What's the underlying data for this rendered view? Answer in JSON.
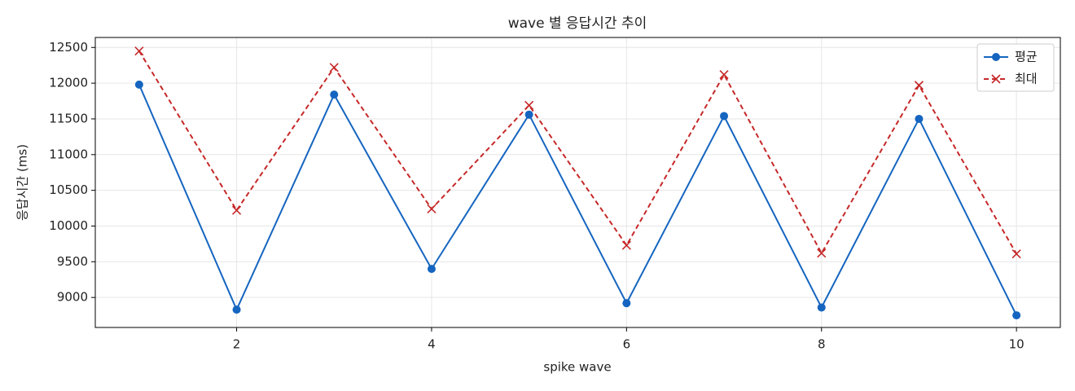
{
  "chart_data": {
    "type": "line",
    "title": "wave 별 응답시간 추이",
    "x_label": "spike wave",
    "y_label": "응답시간 (ms)",
    "x": [
      1,
      2,
      3,
      4,
      5,
      6,
      7,
      8,
      9,
      10
    ],
    "series": [
      {
        "name": "평균",
        "color": "#1565c0",
        "marker": "circle",
        "dash": false,
        "values": [
          11980,
          8830,
          11840,
          9400,
          11560,
          8920,
          11540,
          8860,
          11500,
          8750
        ]
      },
      {
        "name": "최대",
        "color": "#c62828",
        "marker": "x",
        "dash": true,
        "values": [
          12450,
          10220,
          12220,
          10240,
          11690,
          9730,
          12120,
          9620,
          11970,
          9610
        ]
      }
    ],
    "xlim": [
      0.55,
      10.45
    ],
    "xticks": [
      2,
      4,
      6,
      8,
      10
    ],
    "ylim": [
      8580,
      12640
    ],
    "yticks": [
      9000,
      9500,
      10000,
      10500,
      11000,
      11500,
      12000,
      12500
    ],
    "grid": true,
    "legend": "upper right"
  }
}
